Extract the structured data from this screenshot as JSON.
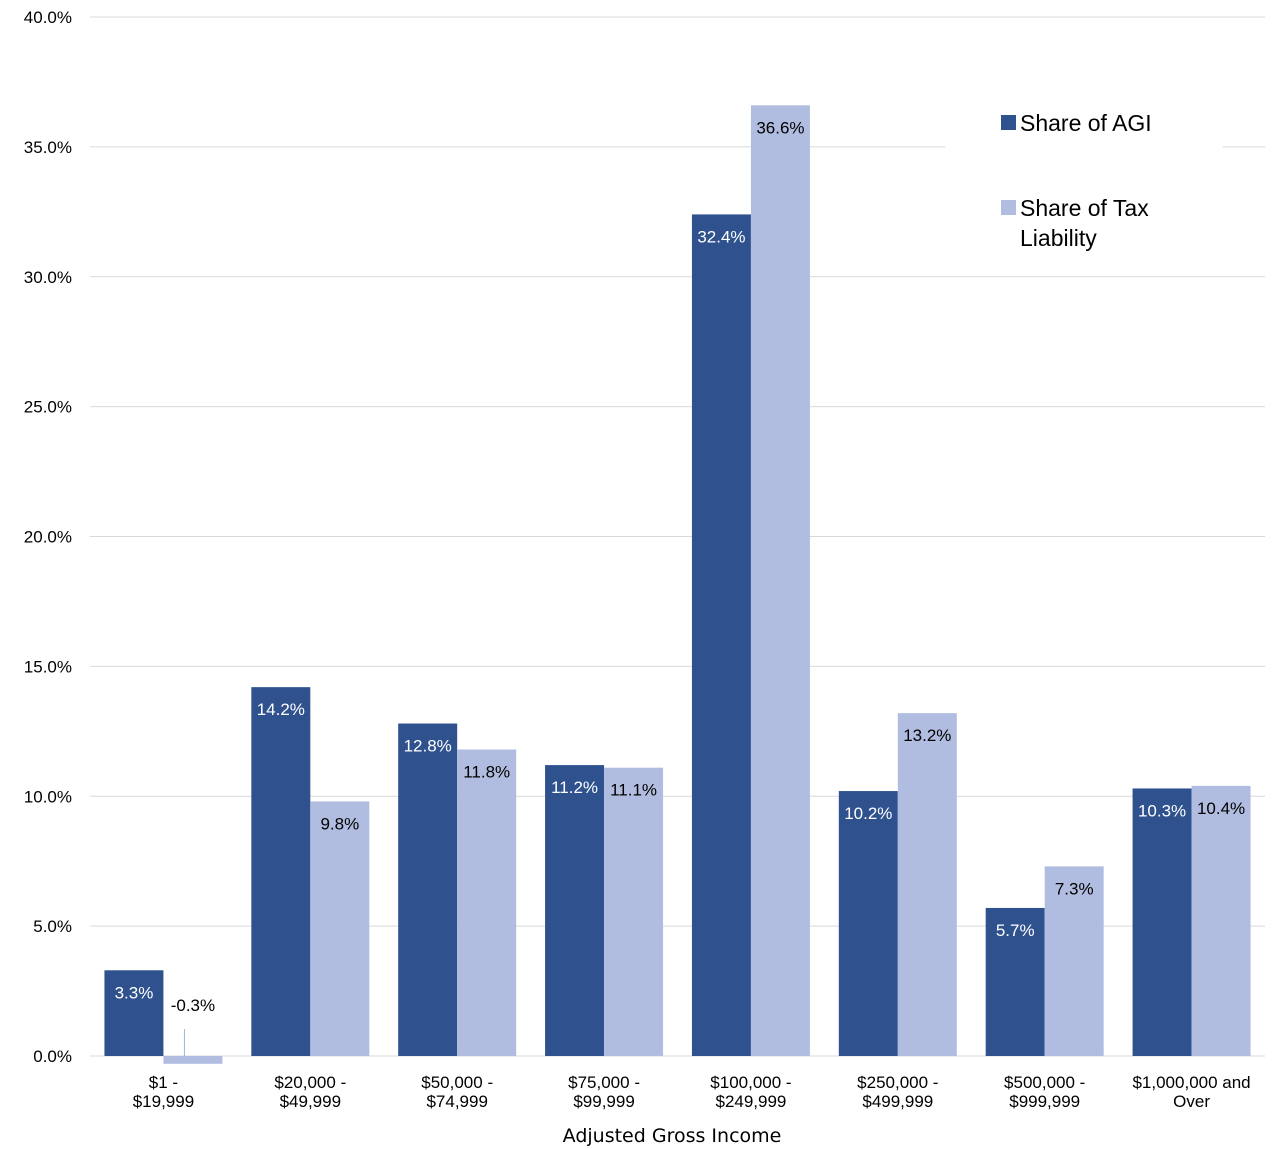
{
  "chart_data": {
    "type": "bar",
    "title": "",
    "xlabel": "Adjusted Gross Income",
    "ylabel": "",
    "ylim": [
      0,
      40
    ],
    "y_ticks": [
      "0.0%",
      "5.0%",
      "10.0%",
      "15.0%",
      "20.0%",
      "25.0%",
      "30.0%",
      "35.0%",
      "40.0%"
    ],
    "grid": true,
    "legend_position": "top-right",
    "categories": [
      [
        "$1      -",
        "$19,999"
      ],
      [
        "$20,000 -",
        "$49,999"
      ],
      [
        "$50,000 -",
        "$74,999"
      ],
      [
        "$75,000 -",
        "$99,999"
      ],
      [
        "$100,000 -",
        "$249,999"
      ],
      [
        "$250,000 -",
        "$499,999"
      ],
      [
        "$500,000 -",
        "$999,999"
      ],
      [
        "$1,000,000 and",
        "Over"
      ]
    ],
    "series": [
      {
        "name": "Share of AGI",
        "color": "#2F528F",
        "label_color": "#FFFFFF",
        "values": [
          3.3,
          14.2,
          12.8,
          11.2,
          32.4,
          10.2,
          5.7,
          10.3
        ],
        "labels": [
          "3.3%",
          "14.2%",
          "12.8%",
          "11.2%",
          "32.4%",
          "10.2%",
          "5.7%",
          "10.3%"
        ]
      },
      {
        "name": "Share of Tax Liability",
        "legend_lines": [
          "Share of Tax",
          "Liability"
        ],
        "color": "#B1BDE0",
        "label_color": "#000000",
        "values": [
          -0.3,
          9.8,
          11.8,
          11.1,
          36.6,
          13.2,
          7.3,
          10.4
        ],
        "labels": [
          "-0.3%",
          "9.8%",
          "11.8%",
          "11.1%",
          "36.6%",
          "13.2%",
          "7.3%",
          "10.4%"
        ]
      }
    ]
  }
}
